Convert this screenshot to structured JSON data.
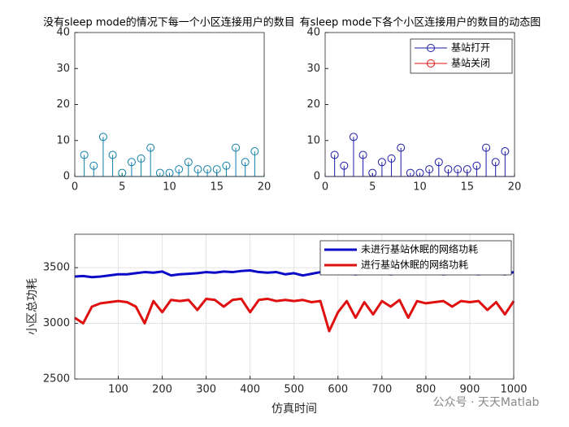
{
  "chart_data": [
    {
      "type": "stem",
      "title": "没有sleep mode的情况下每一个小区连接用户的数目",
      "x": [
        1,
        2,
        3,
        4,
        5,
        6,
        7,
        8,
        9,
        10,
        11,
        12,
        13,
        14,
        15,
        16,
        17,
        18,
        19
      ],
      "series": [
        {
          "color": "#0f7fa8",
          "values": [
            6,
            3,
            11,
            6,
            1,
            4,
            5,
            8,
            1,
            1,
            2,
            4,
            2,
            2,
            2,
            3,
            8,
            4,
            7
          ]
        }
      ],
      "xlim": [
        0,
        20
      ],
      "xticks": [
        0,
        5,
        10,
        15,
        20
      ],
      "ylim": [
        0,
        40
      ],
      "yticks": [
        0,
        10,
        20,
        30,
        40
      ]
    },
    {
      "type": "stem",
      "title": "有sleep mode下各个小区连接用户的数目的动态图",
      "x": [
        1,
        2,
        3,
        4,
        5,
        6,
        7,
        8,
        9,
        10,
        11,
        12,
        13,
        14,
        15,
        16,
        17,
        18,
        19
      ],
      "series": [
        {
          "name": "基站打开",
          "color": "#1a1aa6",
          "values": [
            6,
            3,
            11,
            6,
            1,
            4,
            5,
            8,
            1,
            1,
            2,
            4,
            2,
            2,
            2,
            3,
            8,
            4,
            7
          ]
        },
        {
          "name": "基站关闭",
          "color": "#e01010",
          "values": [
            null,
            null,
            null,
            null,
            null,
            null,
            null,
            null,
            null,
            null,
            null,
            null,
            null,
            null,
            null,
            null,
            null,
            null,
            null
          ]
        }
      ],
      "xlim": [
        0,
        20
      ],
      "xticks": [
        0,
        5,
        10,
        15,
        20
      ],
      "ylim": [
        0,
        40
      ],
      "yticks": [
        0,
        10,
        20,
        30,
        40
      ],
      "legend": "upper right"
    },
    {
      "type": "line",
      "xlabel": "仿真时间",
      "ylabel": "小区总功耗",
      "x": [
        1,
        20,
        40,
        60,
        80,
        100,
        120,
        140,
        160,
        180,
        200,
        220,
        240,
        260,
        280,
        300,
        320,
        340,
        360,
        380,
        400,
        420,
        440,
        460,
        480,
        500,
        520,
        540,
        560,
        580,
        600,
        620,
        640,
        660,
        680,
        700,
        720,
        740,
        760,
        780,
        800,
        820,
        840,
        860,
        880,
        900,
        920,
        940,
        960,
        980,
        1000
      ],
      "series": [
        {
          "name": "未进行基站休眠的网络功耗",
          "color": "#0a0ac8",
          "values": [
            3420,
            3425,
            3415,
            3420,
            3430,
            3440,
            3440,
            3450,
            3460,
            3455,
            3465,
            3430,
            3440,
            3445,
            3450,
            3460,
            3455,
            3465,
            3460,
            3470,
            3475,
            3460,
            3455,
            3460,
            3440,
            3450,
            3430,
            3445,
            3460,
            3465,
            3455,
            3450,
            3440,
            3450,
            3460,
            3455,
            3440,
            3450,
            3460,
            3445,
            3450,
            3455,
            3440,
            3450,
            3460,
            3450,
            3440,
            3455,
            3450,
            3440,
            3460
          ]
        },
        {
          "name": "进行基站休眠的网络功耗",
          "color": "#e01010",
          "values": [
            3050,
            3000,
            3150,
            3180,
            3190,
            3200,
            3190,
            3150,
            3000,
            3200,
            3100,
            3210,
            3200,
            3210,
            3120,
            3220,
            3210,
            3150,
            3210,
            3220,
            3100,
            3210,
            3220,
            3200,
            3210,
            3200,
            3210,
            3190,
            3200,
            2930,
            3100,
            3200,
            3050,
            3190,
            3080,
            3200,
            3150,
            3210,
            3050,
            3200,
            3180,
            3190,
            3200,
            3150,
            3200,
            3190,
            3200,
            3120,
            3190,
            3080,
            3200
          ]
        }
      ],
      "xlim": [
        1,
        1000
      ],
      "xticks": [
        100,
        200,
        300,
        400,
        500,
        600,
        700,
        800,
        900,
        1000
      ],
      "ylim": [
        2500,
        3800
      ],
      "yticks": [
        2500,
        3000,
        3500
      ],
      "grid": true,
      "legend": "upper right"
    }
  ],
  "watermark": "公众号 · 天天Matlab"
}
